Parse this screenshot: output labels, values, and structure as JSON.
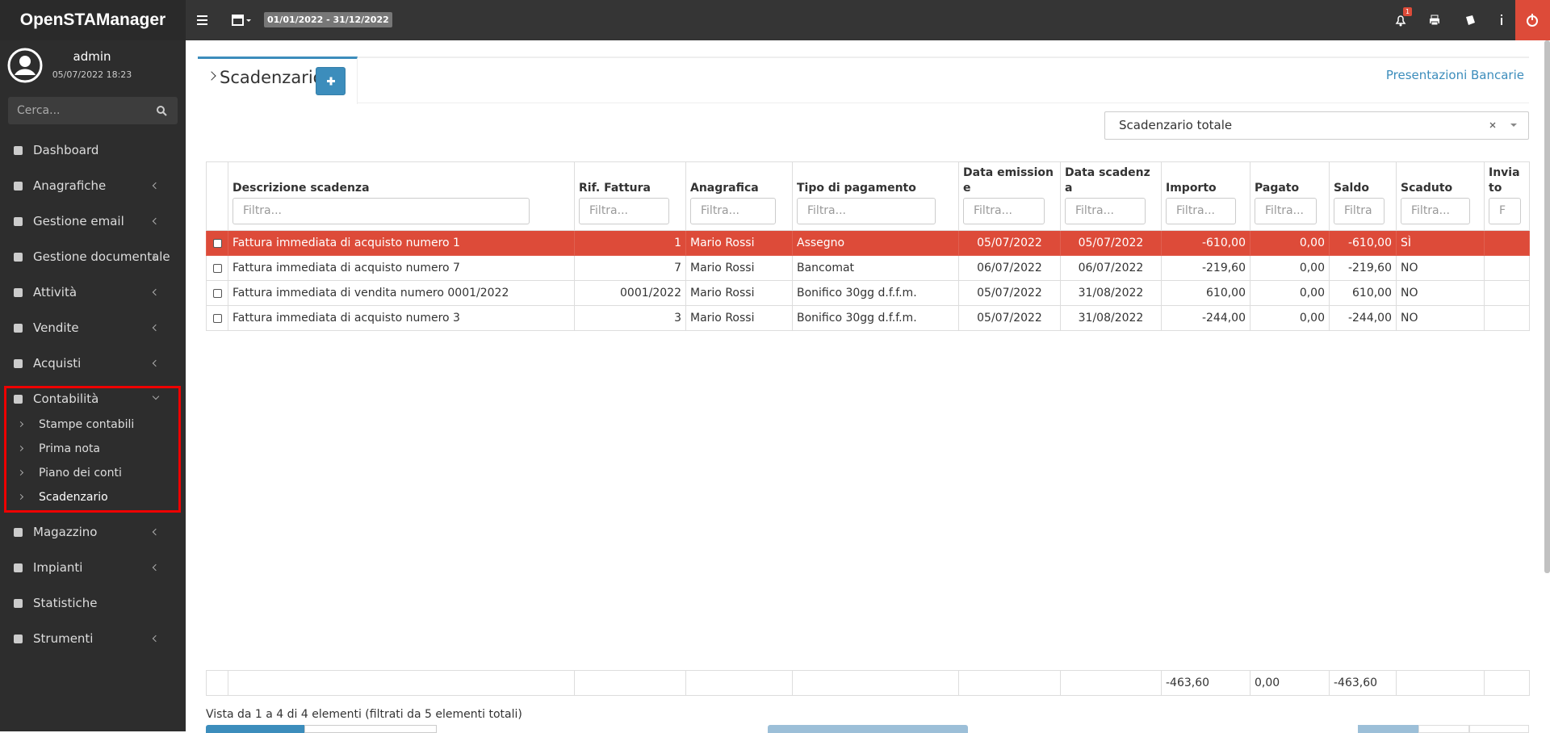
{
  "header": {
    "brand": "OpenSTAManager",
    "date_range": "01/01/2022 - 31/12/2022",
    "notification_count": "1"
  },
  "sidebar": {
    "user": "admin",
    "datetime": "05/07/2022 18:23",
    "search_placeholder": "Cerca...",
    "menu": [
      {
        "label": "Dashboard",
        "has_submenu": false
      },
      {
        "label": "Anagrafiche",
        "has_submenu": true
      },
      {
        "label": "Gestione email",
        "has_submenu": true
      },
      {
        "label": "Gestione documentale",
        "has_submenu": true
      },
      {
        "label": "Attività",
        "has_submenu": true
      },
      {
        "label": "Vendite",
        "has_submenu": true
      },
      {
        "label": "Acquisti",
        "has_submenu": true
      },
      {
        "label": "Contabilità",
        "has_submenu": true,
        "expanded": true,
        "submenu": [
          "Stampe contabili",
          "Prima nota",
          "Piano dei conti",
          "Scadenzario"
        ]
      },
      {
        "label": "Magazzino",
        "has_submenu": true
      },
      {
        "label": "Impianti",
        "has_submenu": true
      },
      {
        "label": "Statistiche",
        "has_submenu": false
      },
      {
        "label": "Strumenti",
        "has_submenu": true
      }
    ]
  },
  "page": {
    "title": "Scadenzario",
    "link": "Presentazioni Bancarie",
    "select": "Scadenzario totale",
    "table": {
      "headers": [
        "Descrizione scadenza",
        "Rif. Fattura",
        "Anagrafica",
        "Tipo di pagamento",
        "Data emissione",
        "Data scadenza",
        "Importo",
        "Pagato",
        "Saldo",
        "Scaduto",
        "Inviato"
      ],
      "filters": [
        "Filtra...",
        "Filtra...",
        "Filtra...",
        "Filtra...",
        "Filtra...",
        "Filtra...",
        "Filtra...",
        "Filtra...",
        "Filtra",
        "Filtra...",
        "F"
      ],
      "rows": [
        [
          "Fattura immediata di acquisto numero 1",
          "1",
          "Mario Rossi",
          "Assegno",
          "05/07/2022",
          "05/07/2022",
          "-610,00",
          "0,00",
          "-610,00",
          "SÌ",
          ""
        ],
        [
          "Fattura immediata di acquisto numero 7",
          "7",
          "Mario Rossi",
          "Bancomat",
          "06/07/2022",
          "06/07/2022",
          "-219,60",
          "0,00",
          "-219,60",
          "NO",
          ""
        ],
        [
          "Fattura immediata di vendita numero 0001/2022",
          "0001/2022",
          "Mario Rossi",
          "Bonifico 30gg d.f.f.m.",
          "05/07/2022",
          "31/08/2022",
          "610,00",
          "0,00",
          "610,00",
          "NO",
          ""
        ],
        [
          "Fattura immediata di acquisto numero 3",
          "3",
          "Mario Rossi",
          "Bonifico 30gg d.f.f.m.",
          "05/07/2022",
          "31/08/2022",
          "-244,00",
          "0,00",
          "-244,00",
          "NO",
          ""
        ]
      ],
      "highlighted_row": 0,
      "totals": {
        "Importo": "-463,60",
        "Pagato": "0,00",
        "Saldo": "-463,60"
      }
    },
    "info": "Vista da 1 a 4 di 4 elementi (filtrati da 5 elementi totali)"
  }
}
